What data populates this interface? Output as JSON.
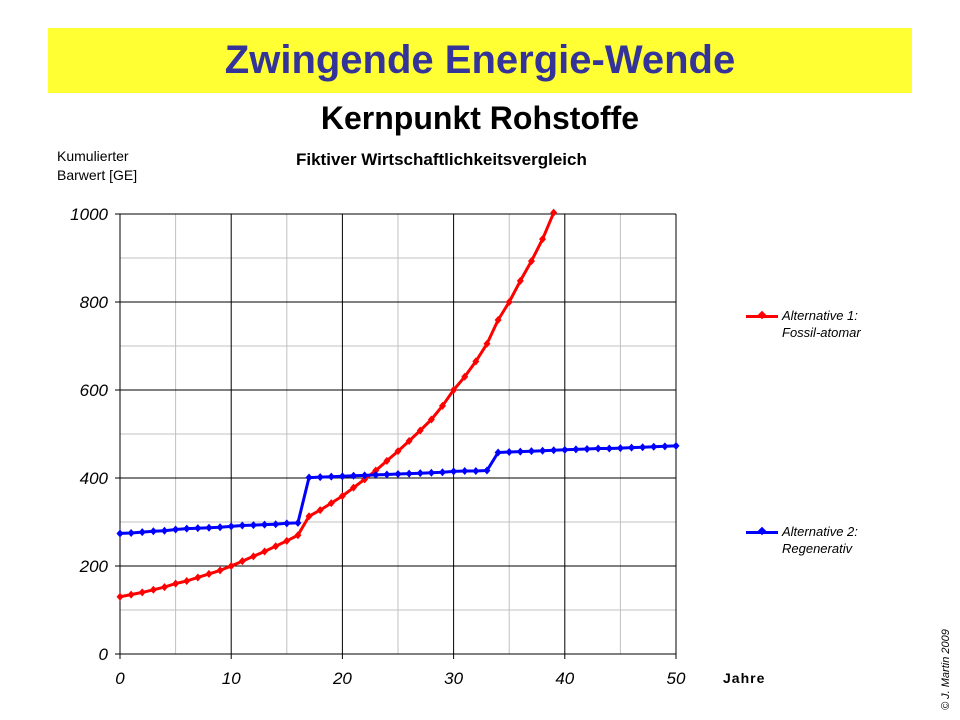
{
  "header": {
    "title": "Zwingende Energie-Wende",
    "subtitle": "Kernpunkt Rohstoffe"
  },
  "colors": {
    "banner_bg": "#ffff33",
    "title_text": "#333399",
    "series1": "#ff0000",
    "series2": "#0000ff"
  },
  "footer": {
    "copyright": "© J. Martin 2009"
  },
  "chart_data": {
    "type": "line",
    "title": "Fiktiver Wirtschaftlichkeitsvergleich",
    "xlabel": "Jahre",
    "ylabel": "Kumulierter Barwert [GE]",
    "ylabel_lines": [
      "Kumulierter",
      "Barwert [GE]"
    ],
    "xlim": [
      0,
      50
    ],
    "ylim": [
      0,
      1000
    ],
    "x_ticks": [
      0,
      10,
      20,
      30,
      40,
      50
    ],
    "y_ticks": [
      0,
      200,
      400,
      600,
      800,
      1000
    ],
    "grid": true,
    "legend_position": "right",
    "series": [
      {
        "name": "Alternative 1: Fossil-atomar",
        "legend_lines": [
          "Alternative 1:",
          "Fossil-atomar"
        ],
        "color": "#ff0000",
        "x": [
          0,
          1,
          2,
          3,
          4,
          5,
          6,
          7,
          8,
          9,
          10,
          11,
          12,
          13,
          14,
          15,
          16,
          17,
          18,
          19,
          20,
          21,
          22,
          23,
          24,
          25,
          26,
          27,
          28,
          29,
          30,
          31,
          32,
          33,
          34,
          35,
          36,
          37,
          38,
          39
        ],
        "values": [
          130,
          135,
          140,
          146,
          152,
          160,
          166,
          174,
          182,
          190,
          200,
          211,
          222,
          233,
          245,
          257,
          270,
          313,
          327,
          343,
          359,
          378,
          397,
          417,
          439,
          461,
          484,
          508,
          533,
          564,
          600,
          630,
          665,
          705,
          759,
          800,
          848,
          893,
          943,
          1003
        ]
      },
      {
        "name": "Alternative 2: Regenerativ",
        "legend_lines": [
          "Alternative 2:",
          "Regenerativ"
        ],
        "color": "#0000ff",
        "x": [
          0,
          1,
          2,
          3,
          4,
          5,
          6,
          7,
          8,
          9,
          10,
          11,
          12,
          13,
          14,
          15,
          16,
          17,
          18,
          19,
          20,
          21,
          22,
          23,
          24,
          25,
          26,
          27,
          28,
          29,
          30,
          31,
          32,
          33,
          34,
          35,
          36,
          37,
          38,
          39,
          40,
          41,
          42,
          43,
          44,
          45,
          46,
          47,
          48,
          49,
          50
        ],
        "values": [
          274,
          275,
          277,
          279,
          280,
          283,
          285,
          286,
          287,
          288,
          290,
          292,
          293,
          294,
          295,
          297,
          298,
          401,
          402,
          403,
          404,
          405,
          406,
          407,
          408,
          409,
          410,
          411,
          412,
          413,
          415,
          416,
          416,
          417,
          458,
          459,
          460,
          461,
          462,
          463,
          464,
          465,
          466,
          467,
          467,
          468,
          469,
          470,
          471,
          472,
          473
        ]
      }
    ]
  }
}
